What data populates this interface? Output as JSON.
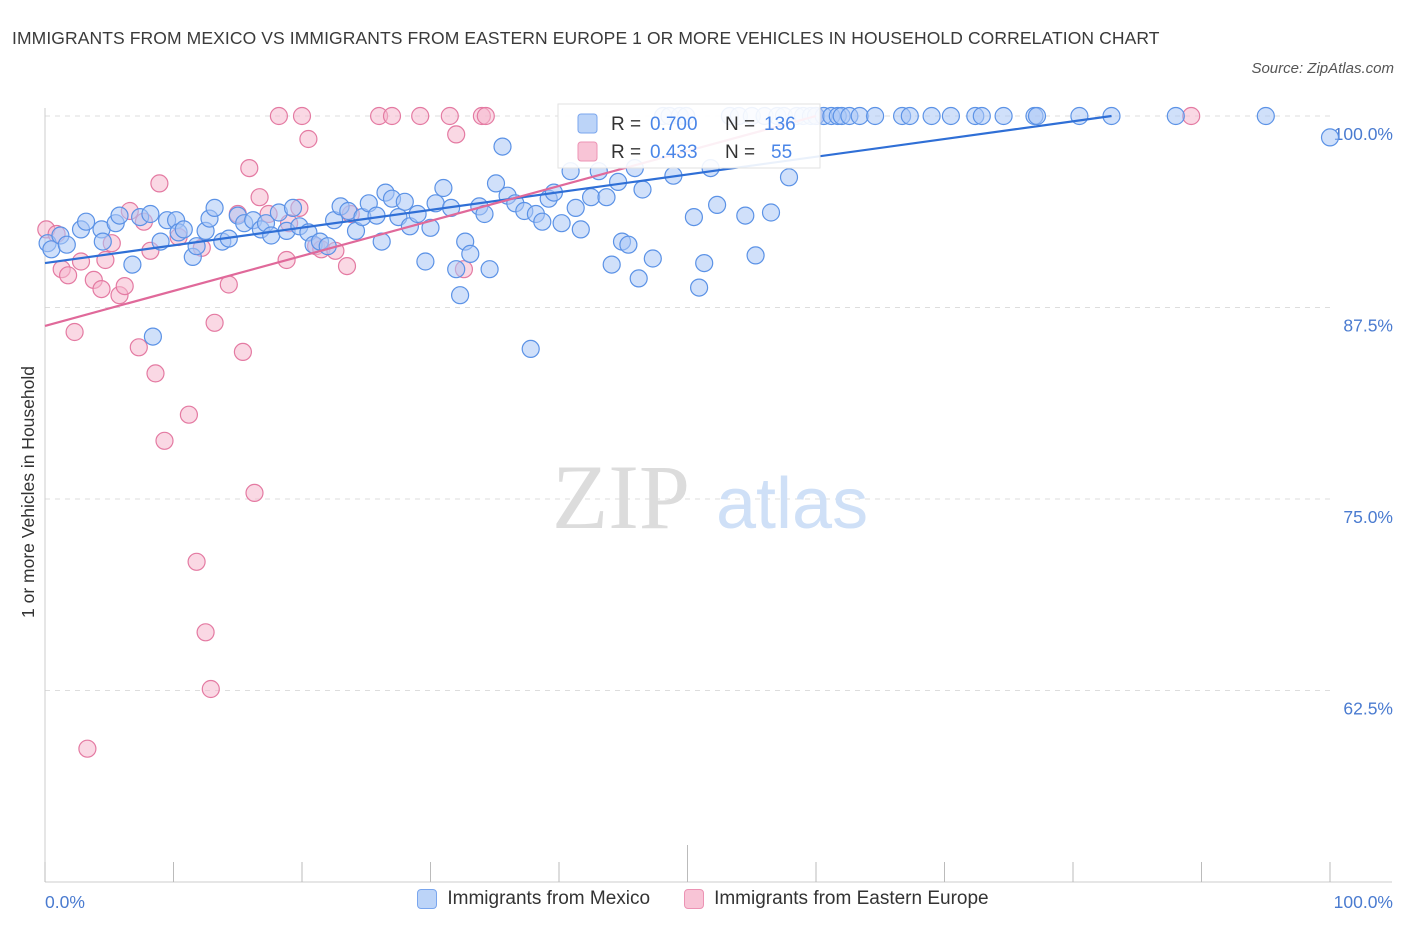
{
  "title": "IMMIGRANTS FROM MEXICO VS IMMIGRANTS FROM EASTERN EUROPE 1 OR MORE VEHICLES IN HOUSEHOLD CORRELATION CHART",
  "source": "Source: ZipAtlas.com",
  "watermark": {
    "zip": "ZIP",
    "atlas": "atlas"
  },
  "colors": {
    "blue": "#4a86e8",
    "blue_fill": "#a9c6f5",
    "pink": "#e0699a",
    "pink_fill": "#f5b8cd",
    "axis_label": "#4a7bd0"
  },
  "stats_box": {
    "rows": [
      {
        "r_label": "R = ",
        "r_value": "0.700",
        "n_label": "N = ",
        "n_value": "136"
      },
      {
        "r_label": "R = ",
        "r_value": "0.433",
        "n_label": "N = ",
        "n_value": "55"
      }
    ]
  },
  "legend": {
    "items": [
      {
        "label": "Immigrants from Mexico"
      },
      {
        "label": "Immigrants from Eastern Europe"
      }
    ]
  },
  "chart_data": {
    "type": "scatter",
    "title": "IMMIGRANTS FROM MEXICO VS IMMIGRANTS FROM EASTERN EUROPE 1 OR MORE VEHICLES IN HOUSEHOLD CORRELATION CHART",
    "xlabel": "",
    "ylabel": "1 or more Vehicles in Household",
    "xlim": [
      0,
      100
    ],
    "ylim": [
      50,
      100
    ],
    "x_tick_labels": [
      "0.0%",
      "100.0%"
    ],
    "y_ticks": [
      {
        "value": 100,
        "label": "100.0%"
      },
      {
        "value": 87.5,
        "label": "87.5%"
      },
      {
        "value": 75,
        "label": "75.0%"
      },
      {
        "value": 62.5,
        "label": "62.5%"
      }
    ],
    "grid": true,
    "legend_position": "bottom-center",
    "series": [
      {
        "name": "Immigrants from Mexico",
        "color": "#4a86e8",
        "trend": {
          "x": [
            0,
            83
          ],
          "y": [
            90.4,
            100
          ]
        },
        "points": [
          [
            0.2,
            91.7
          ],
          [
            0.5,
            91.3
          ],
          [
            1.2,
            92.2
          ],
          [
            1.7,
            91.6
          ],
          [
            2.8,
            92.6
          ],
          [
            3.2,
            93.1
          ],
          [
            4.4,
            92.6
          ],
          [
            4.5,
            91.8
          ],
          [
            5.5,
            93.0
          ],
          [
            5.8,
            93.5
          ],
          [
            6.8,
            90.3
          ],
          [
            7.4,
            93.4
          ],
          [
            8.2,
            93.6
          ],
          [
            8.4,
            85.6
          ],
          [
            9.0,
            91.8
          ],
          [
            9.5,
            93.2
          ],
          [
            10.2,
            93.2
          ],
          [
            10.4,
            92.4
          ],
          [
            10.8,
            92.6
          ],
          [
            11.5,
            90.8
          ],
          [
            11.8,
            91.5
          ],
          [
            12.5,
            92.5
          ],
          [
            12.8,
            93.3
          ],
          [
            13.2,
            94.0
          ],
          [
            13.8,
            91.8
          ],
          [
            14.3,
            92.0
          ],
          [
            15.0,
            93.5
          ],
          [
            15.5,
            93.0
          ],
          [
            16.2,
            93.2
          ],
          [
            16.8,
            92.6
          ],
          [
            17.2,
            93.0
          ],
          [
            17.6,
            92.2
          ],
          [
            18.2,
            93.7
          ],
          [
            18.8,
            92.5
          ],
          [
            19.3,
            94.0
          ],
          [
            19.8,
            92.8
          ],
          [
            20.5,
            92.4
          ],
          [
            20.9,
            91.6
          ],
          [
            21.4,
            91.8
          ],
          [
            22.0,
            91.5
          ],
          [
            22.5,
            93.2
          ],
          [
            23.0,
            94.1
          ],
          [
            23.6,
            93.8
          ],
          [
            24.2,
            92.5
          ],
          [
            24.7,
            93.4
          ],
          [
            25.2,
            94.3
          ],
          [
            25.8,
            93.5
          ],
          [
            26.2,
            91.8
          ],
          [
            26.5,
            95.0
          ],
          [
            27.0,
            94.6
          ],
          [
            27.5,
            93.4
          ],
          [
            28.0,
            94.4
          ],
          [
            28.4,
            92.8
          ],
          [
            29.0,
            93.6
          ],
          [
            29.6,
            90.5
          ],
          [
            30.0,
            92.7
          ],
          [
            30.4,
            94.3
          ],
          [
            31.0,
            95.3
          ],
          [
            31.6,
            94.0
          ],
          [
            32.0,
            90.0
          ],
          [
            32.3,
            88.3
          ],
          [
            32.7,
            91.8
          ],
          [
            33.1,
            91.0
          ],
          [
            33.8,
            94.1
          ],
          [
            34.2,
            93.6
          ],
          [
            34.6,
            90.0
          ],
          [
            35.1,
            95.6
          ],
          [
            35.6,
            98.0
          ],
          [
            36.0,
            94.8
          ],
          [
            36.6,
            94.3
          ],
          [
            37.3,
            93.8
          ],
          [
            37.8,
            84.8
          ],
          [
            38.2,
            93.6
          ],
          [
            38.7,
            93.1
          ],
          [
            39.2,
            94.6
          ],
          [
            39.6,
            95.0
          ],
          [
            40.2,
            93.0
          ],
          [
            40.9,
            96.4
          ],
          [
            41.3,
            94.0
          ],
          [
            41.7,
            92.6
          ],
          [
            42.5,
            94.7
          ],
          [
            43.1,
            96.4
          ],
          [
            43.7,
            94.7
          ],
          [
            44.1,
            90.3
          ],
          [
            44.6,
            95.7
          ],
          [
            44.9,
            91.8
          ],
          [
            45.4,
            91.6
          ],
          [
            45.9,
            96.6
          ],
          [
            46.2,
            89.4
          ],
          [
            46.5,
            95.2
          ],
          [
            47.3,
            90.7
          ],
          [
            48.1,
            100
          ],
          [
            48.6,
            100
          ],
          [
            48.9,
            96.1
          ],
          [
            49.4,
            100
          ],
          [
            49.9,
            100
          ],
          [
            50.5,
            93.4
          ],
          [
            50.9,
            88.8
          ],
          [
            51.3,
            90.4
          ],
          [
            51.8,
            96.6
          ],
          [
            52.3,
            94.2
          ],
          [
            53.3,
            100
          ],
          [
            54.0,
            100
          ],
          [
            54.5,
            93.5
          ],
          [
            55.0,
            100
          ],
          [
            55.3,
            90.9
          ],
          [
            56.0,
            100
          ],
          [
            56.5,
            93.7
          ],
          [
            57.0,
            100
          ],
          [
            57.5,
            100
          ],
          [
            57.9,
            96.0
          ],
          [
            58.5,
            100
          ],
          [
            59.0,
            100
          ],
          [
            59.6,
            100
          ],
          [
            60.0,
            100
          ],
          [
            60.6,
            100
          ],
          [
            61.2,
            100
          ],
          [
            61.7,
            100
          ],
          [
            62.0,
            100
          ],
          [
            62.6,
            100
          ],
          [
            63.4,
            100
          ],
          [
            64.6,
            100
          ],
          [
            66.7,
            100
          ],
          [
            67.3,
            100
          ],
          [
            69.0,
            100
          ],
          [
            70.5,
            100
          ],
          [
            72.4,
            100
          ],
          [
            74.6,
            100
          ],
          [
            77.0,
            100
          ],
          [
            77.2,
            100
          ],
          [
            83.0,
            100
          ],
          [
            88.0,
            100
          ],
          [
            95.0,
            100
          ],
          [
            100.0,
            98.6
          ],
          [
            72.9,
            100
          ],
          [
            80.5,
            100
          ]
        ]
      },
      {
        "name": "Immigrants from Eastern Europe",
        "color": "#e0699a",
        "trend": {
          "x": [
            0,
            60
          ],
          "y": [
            86.3,
            100
          ]
        },
        "points": [
          [
            0.1,
            92.6
          ],
          [
            0.9,
            92.3
          ],
          [
            1.3,
            90.0
          ],
          [
            1.8,
            89.6
          ],
          [
            2.3,
            85.9
          ],
          [
            2.8,
            90.5
          ],
          [
            3.3,
            58.7
          ],
          [
            3.8,
            89.3
          ],
          [
            4.4,
            88.7
          ],
          [
            4.7,
            90.6
          ],
          [
            5.2,
            91.7
          ],
          [
            5.8,
            88.3
          ],
          [
            6.2,
            88.9
          ],
          [
            6.6,
            93.8
          ],
          [
            7.3,
            84.9
          ],
          [
            7.7,
            93.1
          ],
          [
            8.2,
            91.2
          ],
          [
            8.6,
            83.2
          ],
          [
            8.9,
            95.6
          ],
          [
            9.3,
            78.8
          ],
          [
            10.4,
            92.1
          ],
          [
            11.2,
            80.5
          ],
          [
            11.8,
            70.9
          ],
          [
            12.2,
            91.4
          ],
          [
            12.5,
            66.3
          ],
          [
            12.9,
            62.6
          ],
          [
            13.2,
            86.5
          ],
          [
            14.3,
            89.0
          ],
          [
            15.0,
            93.6
          ],
          [
            15.4,
            84.6
          ],
          [
            15.9,
            96.6
          ],
          [
            16.3,
            75.4
          ],
          [
            16.7,
            94.7
          ],
          [
            17.4,
            93.6
          ],
          [
            18.2,
            100
          ],
          [
            18.8,
            90.6
          ],
          [
            19.0,
            93.0
          ],
          [
            19.8,
            94.0
          ],
          [
            20.0,
            100
          ],
          [
            20.5,
            98.5
          ],
          [
            21.1,
            91.5
          ],
          [
            21.5,
            91.3
          ],
          [
            22.6,
            91.2
          ],
          [
            23.5,
            90.2
          ],
          [
            23.8,
            93.6
          ],
          [
            26.0,
            100
          ],
          [
            27.0,
            100
          ],
          [
            29.2,
            100
          ],
          [
            31.5,
            100
          ],
          [
            32.0,
            98.8
          ],
          [
            32.6,
            90.0
          ],
          [
            34.0,
            100
          ],
          [
            34.3,
            100
          ],
          [
            60.0,
            100
          ],
          [
            89.2,
            100
          ]
        ]
      }
    ]
  }
}
